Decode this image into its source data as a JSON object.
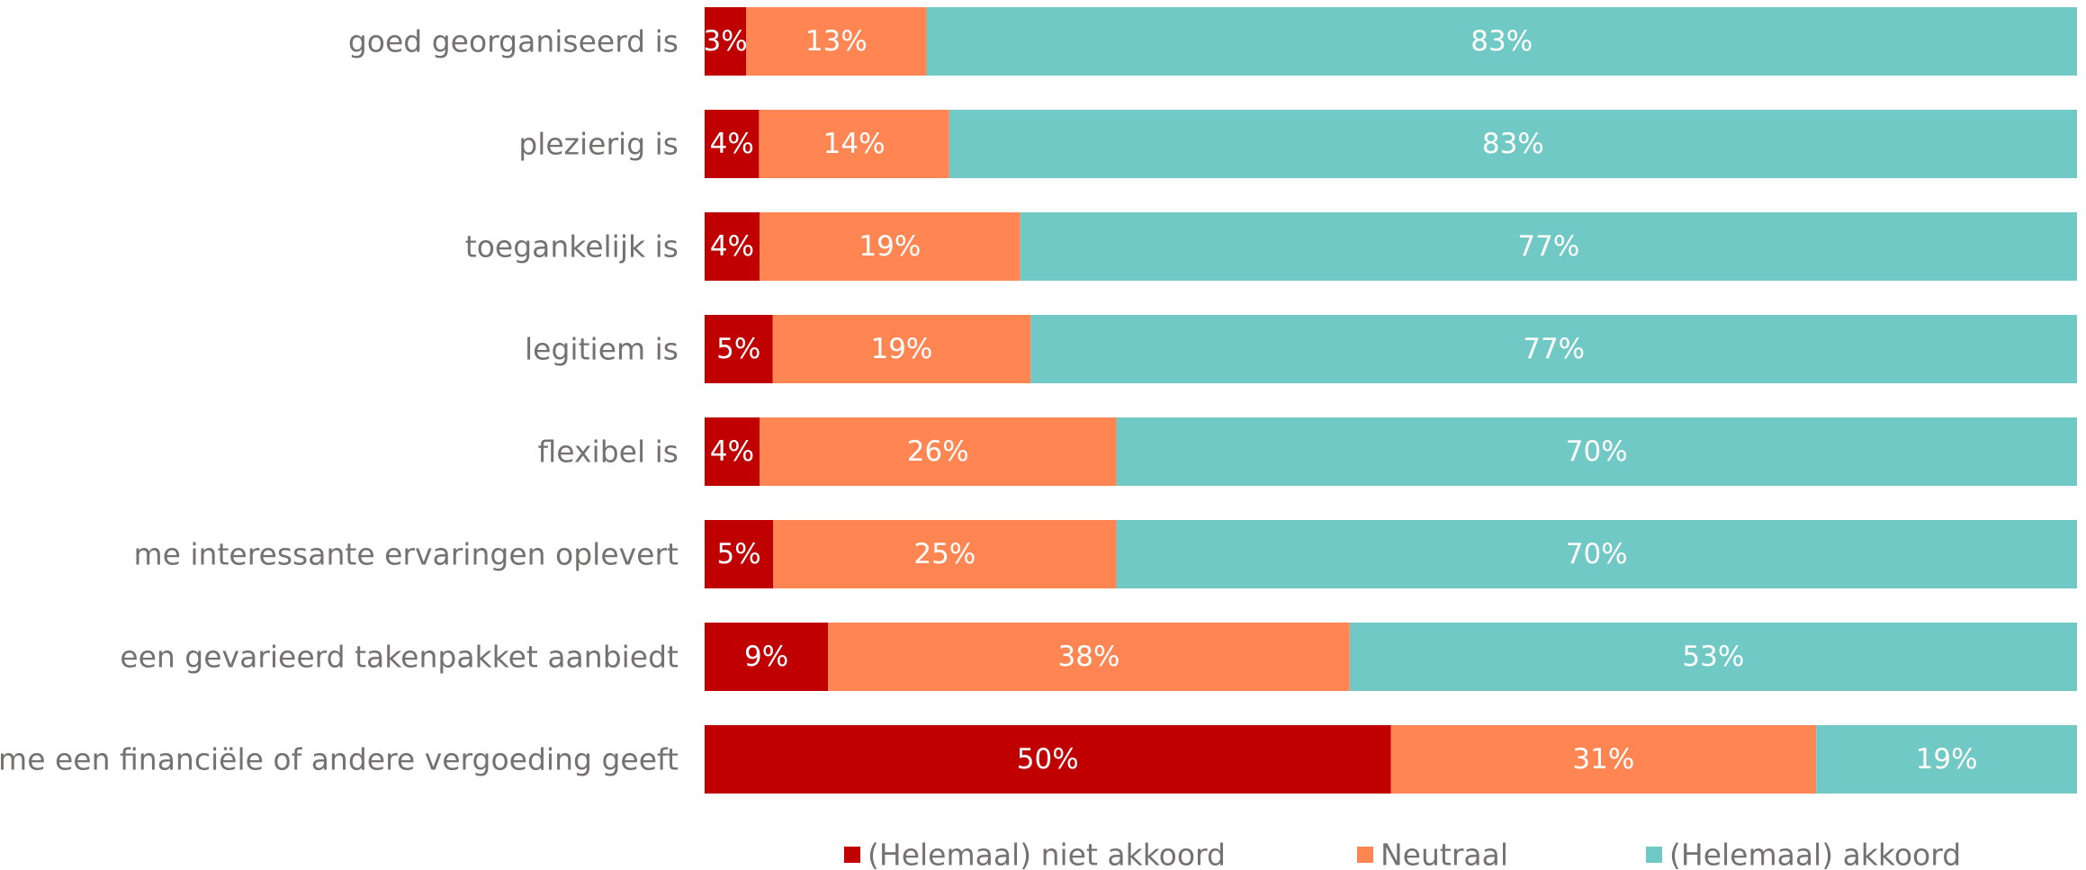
{
  "chart_data": {
    "type": "bar",
    "orientation": "horizontal",
    "stacked": true,
    "normalized": true,
    "title": "",
    "xlabel": "",
    "ylabel": "",
    "categories": [
      "goed georganiseerd is",
      "plezierig is",
      "toegankelijk is",
      "legitiem is",
      "flexibel is",
      "me interessante ervaringen oplevert",
      "een gevarieerd takenpakket aanbiedt",
      "me een financiële of andere vergoeding geeft"
    ],
    "series": [
      {
        "name": "(Helemaal) niet akkoord",
        "color": "#C00000",
        "values": [
          3,
          4,
          4,
          5,
          4,
          5,
          9,
          50
        ]
      },
      {
        "name": "Neutraal",
        "color": "#FF8652",
        "values": [
          13,
          14,
          19,
          19,
          26,
          25,
          38,
          31
        ]
      },
      {
        "name": "(Helemaal) akkoord",
        "color": "#70C9C5",
        "values": [
          83,
          83,
          77,
          77,
          70,
          70,
          53,
          19
        ]
      }
    ],
    "value_suffix": "%",
    "grid": false,
    "legend_position": "bottom"
  }
}
